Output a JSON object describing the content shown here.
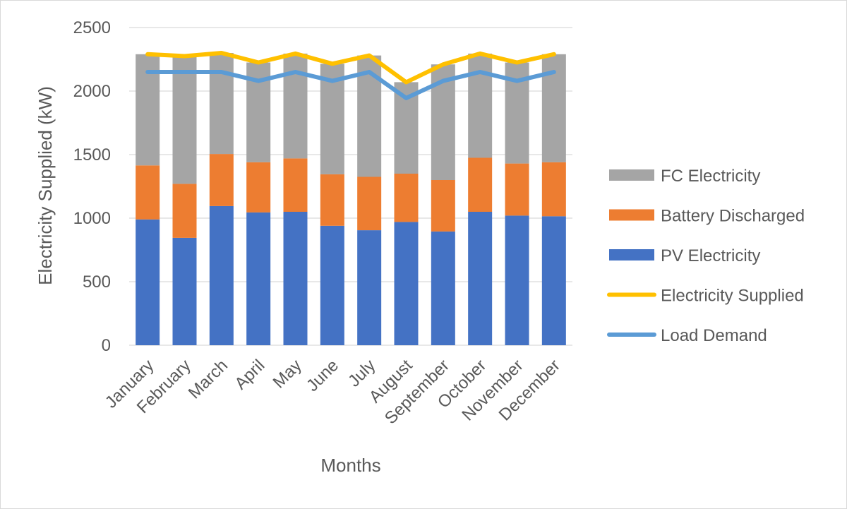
{
  "chart_data": {
    "type": "bar",
    "stacked": true,
    "categories": [
      "January",
      "February",
      "March",
      "April",
      "May",
      "June",
      "July",
      "August",
      "September",
      "October",
      "November",
      "December"
    ],
    "title": "",
    "xlabel": "Months",
    "ylabel": "Electricity Supplied (kW)",
    "ylim": [
      0,
      2500
    ],
    "yticks": [
      0,
      500,
      1000,
      1500,
      2000,
      2500
    ],
    "grid": true,
    "legend_position": "right",
    "bar_series": [
      {
        "name": "PV Electricity",
        "color": "#4472C4",
        "values": [
          990,
          845,
          1095,
          1045,
          1050,
          940,
          905,
          970,
          895,
          1050,
          1020,
          1015
        ]
      },
      {
        "name": "Battery Discharged",
        "color": "#ED7D31",
        "values": [
          425,
          425,
          410,
          395,
          420,
          405,
          420,
          380,
          405,
          425,
          410,
          425
        ]
      },
      {
        "name": "FC Electricity",
        "color": "#A5A5A5",
        "values": [
          875,
          1005,
          795,
          785,
          825,
          870,
          955,
          720,
          910,
          820,
          795,
          850
        ]
      }
    ],
    "line_series": [
      {
        "name": "Electricity Supplied",
        "color": "#FFC000",
        "values": [
          2290,
          2275,
          2300,
          2225,
          2295,
          2215,
          2280,
          2070,
          2210,
          2295,
          2225,
          2290
        ]
      },
      {
        "name": "Load Demand",
        "color": "#5B9BD5",
        "values": [
          2150,
          2150,
          2150,
          2080,
          2150,
          2080,
          2150,
          1945,
          2080,
          2150,
          2080,
          2150
        ]
      }
    ],
    "legend_order": [
      "FC Electricity",
      "Battery Discharged",
      "PV Electricity",
      "Electricity Supplied",
      "Load Demand"
    ]
  }
}
